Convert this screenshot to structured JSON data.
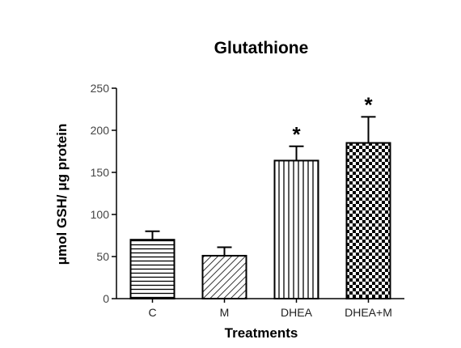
{
  "chart_data": {
    "type": "bar",
    "title": "Glutathione",
    "xlabel": "Treatments",
    "ylabel": "μmol GSH/ μg protein",
    "categories": [
      "C",
      "M",
      "DHEA",
      "DHEA+M"
    ],
    "values": [
      70,
      51,
      164,
      185
    ],
    "errors": [
      10,
      10,
      17,
      31
    ],
    "significance": [
      "",
      "",
      "*",
      "*"
    ],
    "patterns": [
      "horizontal-lines",
      "diagonal-lines",
      "vertical-lines",
      "checkerboard"
    ],
    "ylim": [
      0,
      250
    ],
    "yticks": [
      0,
      50,
      100,
      150,
      200,
      250
    ],
    "grid": false
  }
}
